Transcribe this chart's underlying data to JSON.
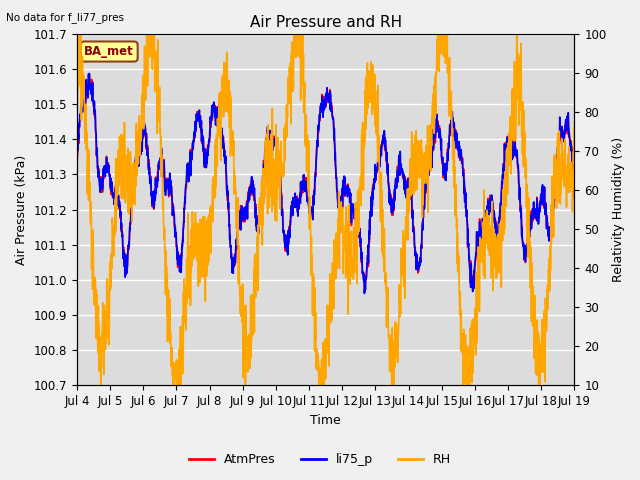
{
  "title": "Air Pressure and RH",
  "annotation": "No data for f_li77_pres",
  "xlabel": "Time",
  "ylabel_left": "Air Pressure (kPa)",
  "ylabel_right": "Relativity Humidity (%)",
  "ylim_left": [
    100.7,
    101.7
  ],
  "ylim_right": [
    10,
    100
  ],
  "yticks_left": [
    100.7,
    100.8,
    100.9,
    101.0,
    101.1,
    101.2,
    101.3,
    101.4,
    101.5,
    101.6,
    101.7
  ],
  "yticks_right": [
    10,
    20,
    30,
    40,
    50,
    60,
    70,
    80,
    90,
    100
  ],
  "xtick_labels": [
    "Jul 4",
    "Jul 5",
    "Jul 6",
    "Jul 7",
    "Jul 8",
    "Jul 9",
    "Jul 10",
    "Jul 11",
    "Jul 12",
    "Jul 13",
    "Jul 14",
    "Jul 15",
    "Jul 16",
    "Jul 17",
    "Jul 18",
    "Jul 19"
  ],
  "color_atm": "#FF0000",
  "color_li75": "#0000FF",
  "color_rh": "#FFA500",
  "legend_labels": [
    "AtmPres",
    "li75_p",
    "RH"
  ],
  "box_label": "BA_met",
  "box_color": "#FFFF99",
  "box_border": "#8B4513",
  "background_color": "#DCDCDC",
  "fig_color": "#F0F0F0",
  "grid_color": "#FFFFFF",
  "title_fontsize": 11,
  "label_fontsize": 9,
  "tick_fontsize": 8.5
}
